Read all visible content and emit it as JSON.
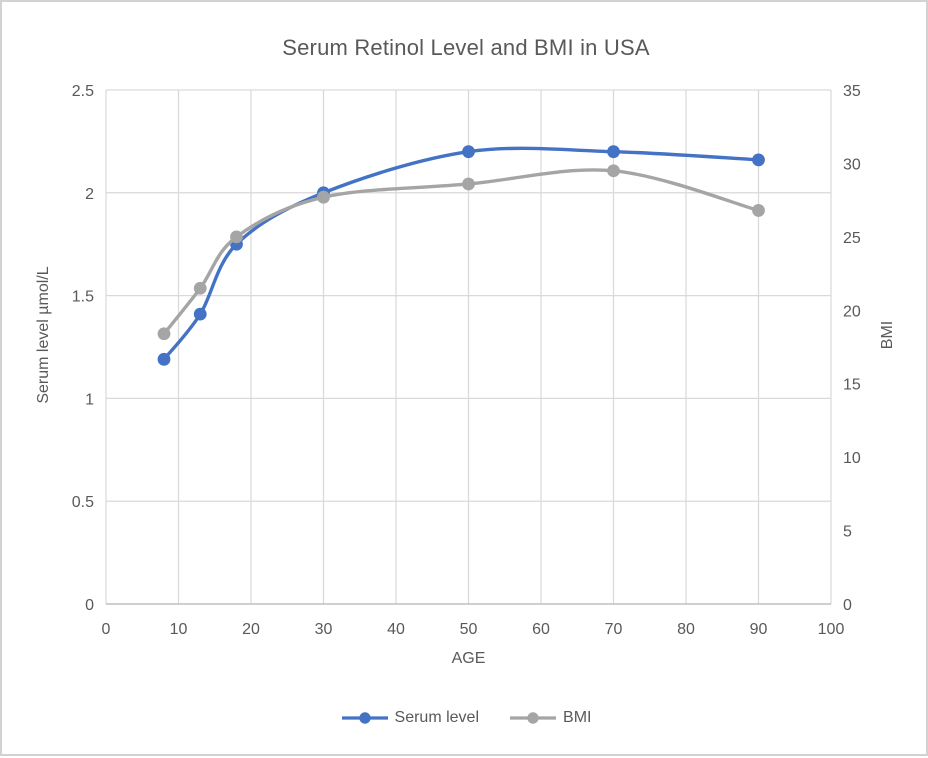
{
  "chart_data": {
    "type": "line",
    "title": "Serum Retinol Level and BMI in USA",
    "xlabel": "AGE",
    "ylabel_left": "Serum level µmol/L",
    "ylabel_right": "BMI",
    "x": [
      8,
      13,
      18,
      30,
      50,
      70,
      90
    ],
    "series": [
      {
        "name": "Serum level",
        "axis": "left",
        "color": "#4472C4",
        "values": [
          1.19,
          1.41,
          1.75,
          2.0,
          2.2,
          2.2,
          2.16
        ]
      },
      {
        "name": "BMI",
        "axis": "right",
        "color": "#A5A5A5",
        "values": [
          18.4,
          21.5,
          25.0,
          27.7,
          28.6,
          29.5,
          26.8
        ]
      }
    ],
    "xlim": [
      0,
      100
    ],
    "ylim_left": [
      0,
      2.5
    ],
    "ylim_right": [
      0,
      35
    ],
    "x_ticks": [
      0,
      10,
      20,
      30,
      40,
      50,
      60,
      70,
      80,
      90,
      100
    ],
    "y_ticks_left": [
      "0",
      "0.5",
      "1",
      "1.5",
      "2",
      "2.5"
    ],
    "y_ticks_right": [
      0,
      5,
      10,
      15,
      20,
      25,
      30,
      35
    ],
    "grid": true,
    "smooth_lines": true,
    "legend_position": "bottom",
    "colors": {
      "serum_line": "#4472C4",
      "bmi_line": "#A5A5A5",
      "text": "#595959",
      "gridline": "#D9D9D9",
      "axis_line": "#BFBFBF",
      "background": "#FFFFFF"
    }
  }
}
